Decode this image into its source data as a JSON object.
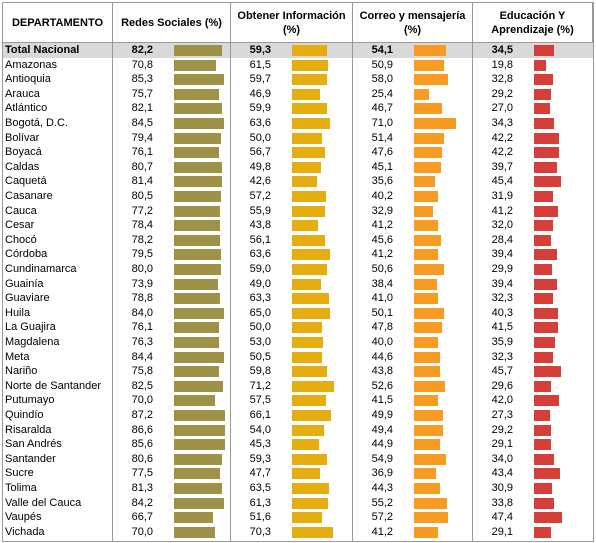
{
  "table": {
    "header": [
      "DEPARTAMENTO",
      "Redes Sociales (%)",
      "Obtener Información\n(%)",
      "Correo y mensajería\n(%)",
      "Educación Y\nAprendizaje (%)"
    ],
    "colors": [
      "#9e9249",
      "#e5ad0f",
      "#f79b22",
      "#d43f3a"
    ],
    "rows": [
      {
        "name": "Total Nacional",
        "cells": [
          {
            "value": 82.2,
            "label": "82,2"
          },
          {
            "value": 59.3,
            "label": "59,3"
          },
          {
            "value": 54.1,
            "label": "54,1"
          },
          {
            "value": 34.5,
            "label": "34,5"
          }
        ]
      },
      {
        "name": "Amazonas",
        "cells": [
          {
            "value": 70.8,
            "label": "70,8"
          },
          {
            "value": 61.5,
            "label": "61,5"
          },
          {
            "value": 50.9,
            "label": "50,9"
          },
          {
            "value": 19.8,
            "label": "19,8"
          }
        ]
      },
      {
        "name": "Antioquia",
        "cells": [
          {
            "value": 85.3,
            "label": "85,3"
          },
          {
            "value": 59.7,
            "label": "59,7"
          },
          {
            "value": 58.0,
            "label": "58,0"
          },
          {
            "value": 32.8,
            "label": "32,8"
          }
        ]
      },
      {
        "name": "Arauca",
        "cells": [
          {
            "value": 75.7,
            "label": "75,7"
          },
          {
            "value": 46.9,
            "label": "46,9"
          },
          {
            "value": 25.4,
            "label": "25,4"
          },
          {
            "value": 29.2,
            "label": "29,2"
          }
        ]
      },
      {
        "name": "Atlántico",
        "cells": [
          {
            "value": 82.1,
            "label": "82,1"
          },
          {
            "value": 59.9,
            "label": "59,9"
          },
          {
            "value": 46.7,
            "label": "46,7"
          },
          {
            "value": 27.0,
            "label": "27,0"
          }
        ]
      },
      {
        "name": "Bogotá, D.C.",
        "cells": [
          {
            "value": 84.5,
            "label": "84,5"
          },
          {
            "value": 63.6,
            "label": "63,6"
          },
          {
            "value": 71.0,
            "label": "71,0"
          },
          {
            "value": 34.3,
            "label": "34,3"
          }
        ]
      },
      {
        "name": "Bolívar",
        "cells": [
          {
            "value": 79.4,
            "label": "79,4"
          },
          {
            "value": 50.0,
            "label": "50,0"
          },
          {
            "value": 51.4,
            "label": "51,4"
          },
          {
            "value": 42.2,
            "label": "42,2"
          }
        ]
      },
      {
        "name": "Boyacá",
        "cells": [
          {
            "value": 76.1,
            "label": "76,1"
          },
          {
            "value": 56.7,
            "label": "56,7"
          },
          {
            "value": 47.6,
            "label": "47,6"
          },
          {
            "value": 42.2,
            "label": "42,2"
          }
        ]
      },
      {
        "name": "Caldas",
        "cells": [
          {
            "value": 80.7,
            "label": "80,7"
          },
          {
            "value": 49.8,
            "label": "49,8"
          },
          {
            "value": 45.1,
            "label": "45,1"
          },
          {
            "value": 39.7,
            "label": "39,7"
          }
        ]
      },
      {
        "name": "Caquetá",
        "cells": [
          {
            "value": 81.4,
            "label": "81,4"
          },
          {
            "value": 42.6,
            "label": "42,6"
          },
          {
            "value": 35.6,
            "label": "35,6"
          },
          {
            "value": 45.4,
            "label": "45,4"
          }
        ]
      },
      {
        "name": "Casanare",
        "cells": [
          {
            "value": 80.5,
            "label": "80,5"
          },
          {
            "value": 57.2,
            "label": "57,2"
          },
          {
            "value": 40.2,
            "label": "40,2"
          },
          {
            "value": 31.9,
            "label": "31,9"
          }
        ]
      },
      {
        "name": "Cauca",
        "cells": [
          {
            "value": 77.2,
            "label": "77,2"
          },
          {
            "value": 55.9,
            "label": "55,9"
          },
          {
            "value": 32.9,
            "label": "32,9"
          },
          {
            "value": 41.2,
            "label": "41,2"
          }
        ]
      },
      {
        "name": "Cesar",
        "cells": [
          {
            "value": 78.4,
            "label": "78,4"
          },
          {
            "value": 43.8,
            "label": "43,8"
          },
          {
            "value": 41.2,
            "label": "41,2"
          },
          {
            "value": 32.0,
            "label": "32,0"
          }
        ]
      },
      {
        "name": "Chocó",
        "cells": [
          {
            "value": 78.2,
            "label": "78,2"
          },
          {
            "value": 56.1,
            "label": "56,1"
          },
          {
            "value": 45.6,
            "label": "45,6"
          },
          {
            "value": 28.4,
            "label": "28,4"
          }
        ]
      },
      {
        "name": "Córdoba",
        "cells": [
          {
            "value": 79.5,
            "label": "79,5"
          },
          {
            "value": 63.6,
            "label": "63,6"
          },
          {
            "value": 41.2,
            "label": "41,2"
          },
          {
            "value": 39.4,
            "label": "39,4"
          }
        ]
      },
      {
        "name": "Cundinamarca",
        "cells": [
          {
            "value": 80.0,
            "label": "80,0"
          },
          {
            "value": 59.0,
            "label": "59,0"
          },
          {
            "value": 50.6,
            "label": "50,6"
          },
          {
            "value": 29.9,
            "label": "29,9"
          }
        ]
      },
      {
        "name": "Guainía",
        "cells": [
          {
            "value": 73.9,
            "label": "73,9"
          },
          {
            "value": 49.0,
            "label": "49,0"
          },
          {
            "value": 38.4,
            "label": "38,4"
          },
          {
            "value": 39.4,
            "label": "39,4"
          }
        ]
      },
      {
        "name": "Guaviare",
        "cells": [
          {
            "value": 78.8,
            "label": "78,8"
          },
          {
            "value": 63.3,
            "label": "63,3"
          },
          {
            "value": 41.0,
            "label": "41,0"
          },
          {
            "value": 32.3,
            "label": "32,3"
          }
        ]
      },
      {
        "name": "Huila",
        "cells": [
          {
            "value": 84.0,
            "label": "84,0"
          },
          {
            "value": 65.0,
            "label": "65,0"
          },
          {
            "value": 50.1,
            "label": "50,1"
          },
          {
            "value": 40.3,
            "label": "40,3"
          }
        ]
      },
      {
        "name": "La Guajira",
        "cells": [
          {
            "value": 76.1,
            "label": "76,1"
          },
          {
            "value": 50.0,
            "label": "50,0"
          },
          {
            "value": 47.8,
            "label": "47,8"
          },
          {
            "value": 41.5,
            "label": "41,5"
          }
        ]
      },
      {
        "name": "Magdalena",
        "cells": [
          {
            "value": 76.3,
            "label": "76,3"
          },
          {
            "value": 53.0,
            "label": "53,0"
          },
          {
            "value": 40.0,
            "label": "40,0"
          },
          {
            "value": 35.9,
            "label": "35,9"
          }
        ]
      },
      {
        "name": "Meta",
        "cells": [
          {
            "value": 84.4,
            "label": "84,4"
          },
          {
            "value": 50.5,
            "label": "50,5"
          },
          {
            "value": 44.6,
            "label": "44,6"
          },
          {
            "value": 32.3,
            "label": "32,3"
          }
        ]
      },
      {
        "name": "Nariño",
        "cells": [
          {
            "value": 75.8,
            "label": "75,8"
          },
          {
            "value": 59.8,
            "label": "59,8"
          },
          {
            "value": 43.8,
            "label": "43,8"
          },
          {
            "value": 45.7,
            "label": "45,7"
          }
        ]
      },
      {
        "name": "Norte de Santander",
        "cells": [
          {
            "value": 82.5,
            "label": "82,5"
          },
          {
            "value": 71.2,
            "label": "71,2"
          },
          {
            "value": 52.6,
            "label": "52,6"
          },
          {
            "value": 29.6,
            "label": "29,6"
          }
        ]
      },
      {
        "name": "Putumayo",
        "cells": [
          {
            "value": 70.0,
            "label": "70,0"
          },
          {
            "value": 57.5,
            "label": "57,5"
          },
          {
            "value": 41.5,
            "label": "41,5"
          },
          {
            "value": 42.0,
            "label": "42,0"
          }
        ]
      },
      {
        "name": "Quindío",
        "cells": [
          {
            "value": 87.2,
            "label": "87,2"
          },
          {
            "value": 66.1,
            "label": "66,1"
          },
          {
            "value": 49.9,
            "label": "49,9"
          },
          {
            "value": 27.3,
            "label": "27,3"
          }
        ]
      },
      {
        "name": "Risaralda",
        "cells": [
          {
            "value": 86.6,
            "label": "86,6"
          },
          {
            "value": 54.0,
            "label": "54,0"
          },
          {
            "value": 49.4,
            "label": "49,4"
          },
          {
            "value": 29.2,
            "label": "29,2"
          }
        ]
      },
      {
        "name": "San Andrés",
        "cells": [
          {
            "value": 85.6,
            "label": "85,6"
          },
          {
            "value": 45.3,
            "label": "45,3"
          },
          {
            "value": 44.9,
            "label": "44,9"
          },
          {
            "value": 29.1,
            "label": "29,1"
          }
        ]
      },
      {
        "name": "Santander",
        "cells": [
          {
            "value": 80.6,
            "label": "80,6"
          },
          {
            "value": 59.3,
            "label": "59,3"
          },
          {
            "value": 54.9,
            "label": "54,9"
          },
          {
            "value": 34.0,
            "label": "34,0"
          }
        ]
      },
      {
        "name": "Sucre",
        "cells": [
          {
            "value": 77.5,
            "label": "77,5"
          },
          {
            "value": 47.7,
            "label": "47,7"
          },
          {
            "value": 36.9,
            "label": "36,9"
          },
          {
            "value": 43.4,
            "label": "43,4"
          }
        ]
      },
      {
        "name": "Tolima",
        "cells": [
          {
            "value": 81.3,
            "label": "81,3"
          },
          {
            "value": 63.5,
            "label": "63,5"
          },
          {
            "value": 44.3,
            "label": "44,3"
          },
          {
            "value": 30.9,
            "label": "30,9"
          }
        ]
      },
      {
        "name": "Valle del Cauca",
        "cells": [
          {
            "value": 84.2,
            "label": "84,2"
          },
          {
            "value": 61.3,
            "label": "61,3"
          },
          {
            "value": 55.2,
            "label": "55,2"
          },
          {
            "value": 33.8,
            "label": "33,8"
          }
        ]
      },
      {
        "name": "Vaupés",
        "cells": [
          {
            "value": 66.7,
            "label": "66,7"
          },
          {
            "value": 51.6,
            "label": "51,6"
          },
          {
            "value": 57.2,
            "label": "57,2"
          },
          {
            "value": 47.4,
            "label": "47,4"
          }
        ]
      },
      {
        "name": "Vichada",
        "cells": [
          {
            "value": 70.0,
            "label": "70,0"
          },
          {
            "value": 70.3,
            "label": "70,3"
          },
          {
            "value": 41.2,
            "label": "41,2"
          },
          {
            "value": 29.1,
            "label": "29,1"
          }
        ]
      }
    ]
  }
}
